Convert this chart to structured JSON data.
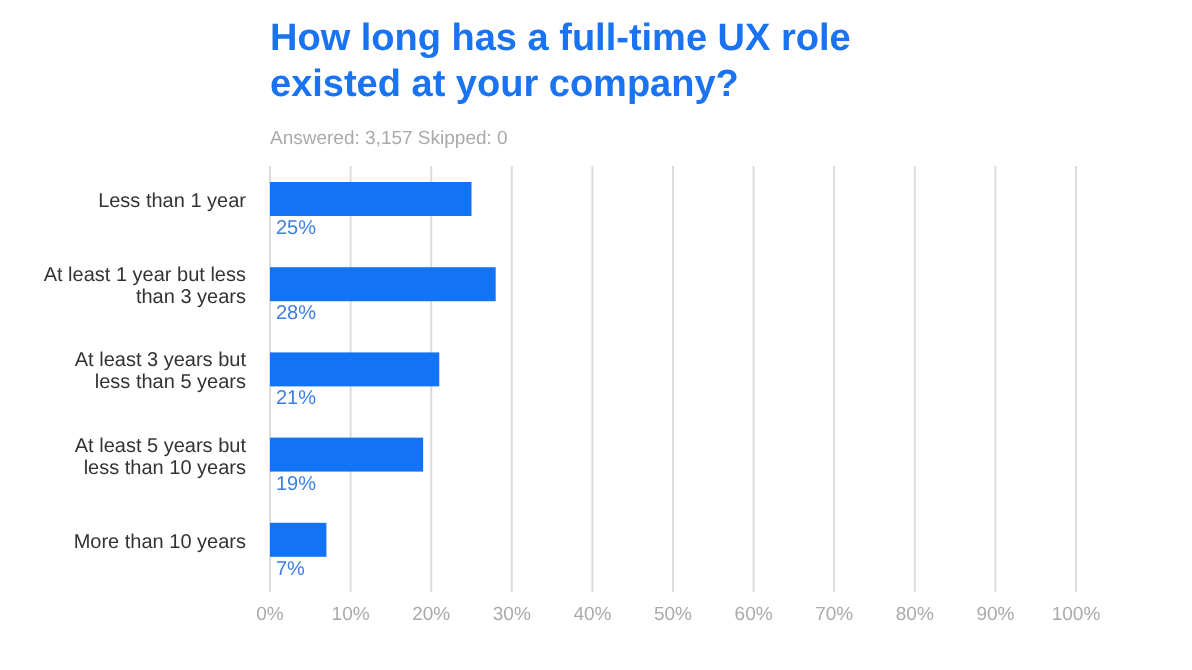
{
  "chart_data": {
    "type": "bar",
    "orientation": "horizontal",
    "title": "How long has a full-time UX role existed at your company?",
    "subtitle": "Answered: 3,157   Skipped: 0",
    "categories": [
      "Less than 1 year",
      "At least 1 year but less than 3 years",
      "At least 3 years but less than 5 years",
      "At least 5 years but less than 10 years",
      "More than 10 years"
    ],
    "values": [
      25,
      28,
      21,
      19,
      7
    ],
    "value_labels": [
      "25%",
      "28%",
      "21%",
      "19%",
      "7%"
    ],
    "color": "#1274f5",
    "xlim": [
      0,
      100
    ],
    "xticks": [
      {
        "value": 0,
        "label": "0%"
      },
      {
        "value": 10,
        "label": "10%"
      },
      {
        "value": 20,
        "label": "20%"
      },
      {
        "value": 30,
        "label": "30%"
      },
      {
        "value": 40,
        "label": "40%"
      },
      {
        "value": 50,
        "label": "50%"
      },
      {
        "value": 60,
        "label": "60%"
      },
      {
        "value": 70,
        "label": "70%"
      },
      {
        "value": 80,
        "label": "80%"
      },
      {
        "value": 90,
        "label": "90%"
      },
      {
        "value": 100,
        "label": "100%"
      }
    ],
    "grid": "x"
  }
}
